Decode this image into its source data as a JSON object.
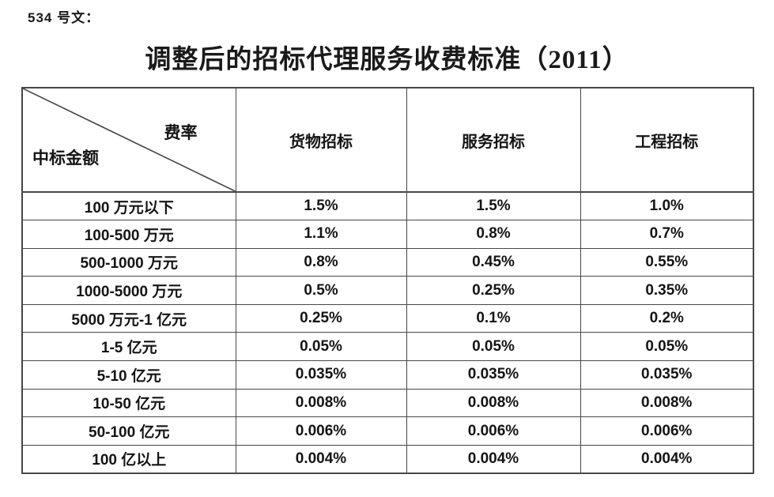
{
  "page": {
    "doc_label": "534 号文：",
    "title": "调整后的招标代理服务收费标准（2011）"
  },
  "table": {
    "corner": {
      "top_right": "费率",
      "bottom_left": "中标金额"
    },
    "columns": [
      "货物招标",
      "服务招标",
      "工程招标"
    ],
    "rows": [
      {
        "amount": "100 万元以下",
        "rates": [
          "1.5%",
          "1.5%",
          "1.0%"
        ]
      },
      {
        "amount": "100-500 万元",
        "rates": [
          "1.1%",
          "0.8%",
          "0.7%"
        ]
      },
      {
        "amount": "500-1000 万元",
        "rates": [
          "0.8%",
          "0.45%",
          "0.55%"
        ]
      },
      {
        "amount": "1000-5000 万元",
        "rates": [
          "0.5%",
          "0.25%",
          "0.35%"
        ]
      },
      {
        "amount": "5000 万元-1 亿元",
        "rates": [
          "0.25%",
          "0.1%",
          "0.2%"
        ]
      },
      {
        "amount": "1-5 亿元",
        "rates": [
          "0.05%",
          "0.05%",
          "0.05%"
        ]
      },
      {
        "amount": "5-10 亿元",
        "rates": [
          "0.035%",
          "0.035%",
          "0.035%"
        ]
      },
      {
        "amount": "10-50 亿元",
        "rates": [
          "0.008%",
          "0.008%",
          "0.008%"
        ]
      },
      {
        "amount": "50-100 亿元",
        "rates": [
          "0.006%",
          "0.006%",
          "0.006%"
        ]
      },
      {
        "amount": "100 亿以上",
        "rates": [
          "0.004%",
          "0.004%",
          "0.004%"
        ]
      }
    ]
  },
  "colors": {
    "border": "#474747",
    "text": "#141414",
    "background": "#ffffff"
  }
}
